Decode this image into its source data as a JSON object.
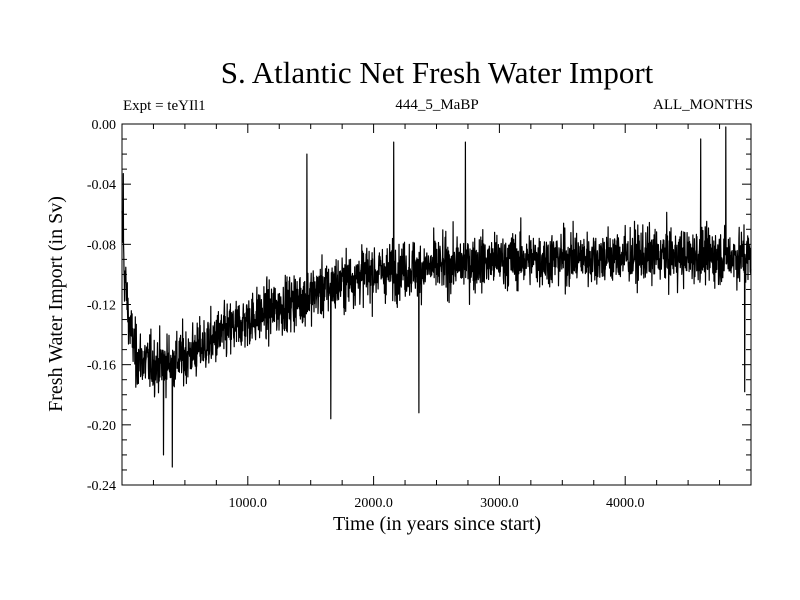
{
  "chart_data": {
    "type": "line",
    "title": "S. Atlantic Net Fresh Water Import",
    "expt_label": "Expt = teYIl1",
    "subtitle_center": "444_5_MaBP",
    "subtitle_right": "ALL_MONTHS",
    "xlabel": "Time (in years since start)",
    "ylabel": "Fresh Water Import (in Sv)",
    "xlim": [
      0,
      5000
    ],
    "ylim": [
      -0.24,
      0.0
    ],
    "x_ticks": [
      1000,
      2000,
      3000,
      4000
    ],
    "x_tick_labels": [
      "1000.0",
      "2000.0",
      "3000.0",
      "4000.0"
    ],
    "y_ticks": [
      0.0,
      -0.04,
      -0.08,
      -0.12,
      -0.16,
      -0.2,
      -0.24
    ],
    "y_tick_labels": [
      "0.00",
      "-0.04",
      "-0.08",
      "-0.12",
      "-0.16",
      "-0.20",
      "-0.24"
    ],
    "grid": false,
    "series": [
      {
        "name": "Net fresh water import",
        "color": "#000000",
        "trend_x": [
          0,
          20,
          60,
          120,
          250,
          400,
          600,
          800,
          1000,
          1300,
          1600,
          1900,
          2200,
          2500,
          2800,
          3200,
          3600,
          4000,
          4500,
          5000
        ],
        "trend_y": [
          -0.07,
          -0.1,
          -0.135,
          -0.155,
          -0.16,
          -0.158,
          -0.15,
          -0.14,
          -0.13,
          -0.12,
          -0.11,
          -0.1,
          -0.097,
          -0.095,
          -0.092,
          -0.09,
          -0.089,
          -0.088,
          -0.088,
          -0.088
        ],
        "noise_sd": 0.013,
        "spikes": [
          {
            "x": 10,
            "y": -0.033
          },
          {
            "x": 110,
            "y": -0.175
          },
          {
            "x": 330,
            "y": -0.22
          },
          {
            "x": 400,
            "y": -0.228
          },
          {
            "x": 1470,
            "y": -0.02
          },
          {
            "x": 1660,
            "y": -0.196
          },
          {
            "x": 2160,
            "y": -0.012
          },
          {
            "x": 2360,
            "y": -0.192
          },
          {
            "x": 2730,
            "y": -0.012
          },
          {
            "x": 4600,
            "y": -0.01
          },
          {
            "x": 4800,
            "y": -0.002
          },
          {
            "x": 4950,
            "y": -0.178
          }
        ]
      }
    ]
  }
}
